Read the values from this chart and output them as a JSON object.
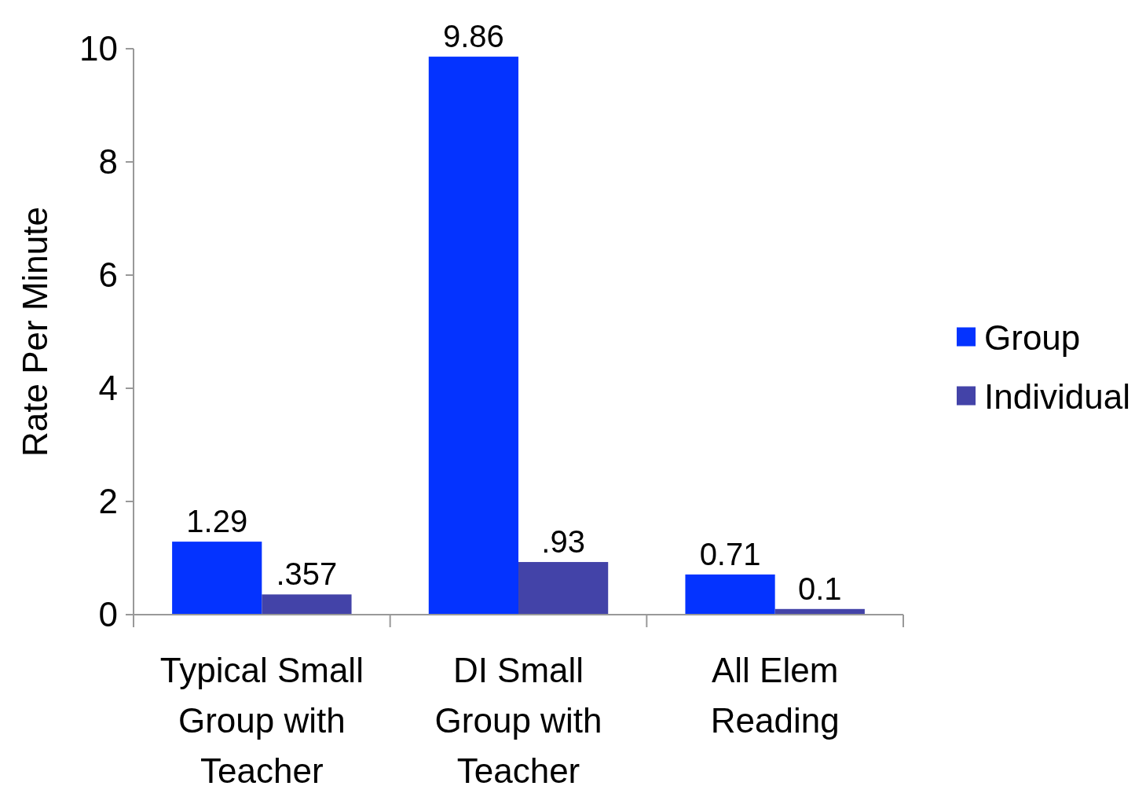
{
  "chart_data": {
    "type": "bar",
    "ylabel": "Rate Per Minute",
    "categories": [
      "Typical Small Group with Teacher",
      "DI Small Group with Teacher",
      "All Elem Reading"
    ],
    "series": [
      {
        "name": "Group",
        "color": "#0433ff",
        "values": [
          1.29,
          9.86,
          0.71
        ],
        "value_labels": [
          "1.29",
          "9.86",
          "0.71"
        ]
      },
      {
        "name": "Individual",
        "color": "#4343a8",
        "values": [
          0.357,
          0.93,
          0.1
        ],
        "value_labels": [
          ".357",
          ".93",
          "0.1"
        ]
      }
    ],
    "ylim": [
      0,
      10
    ],
    "yticks": [
      0,
      2,
      4,
      6,
      8,
      10
    ],
    "legend": "right",
    "grid": false
  }
}
